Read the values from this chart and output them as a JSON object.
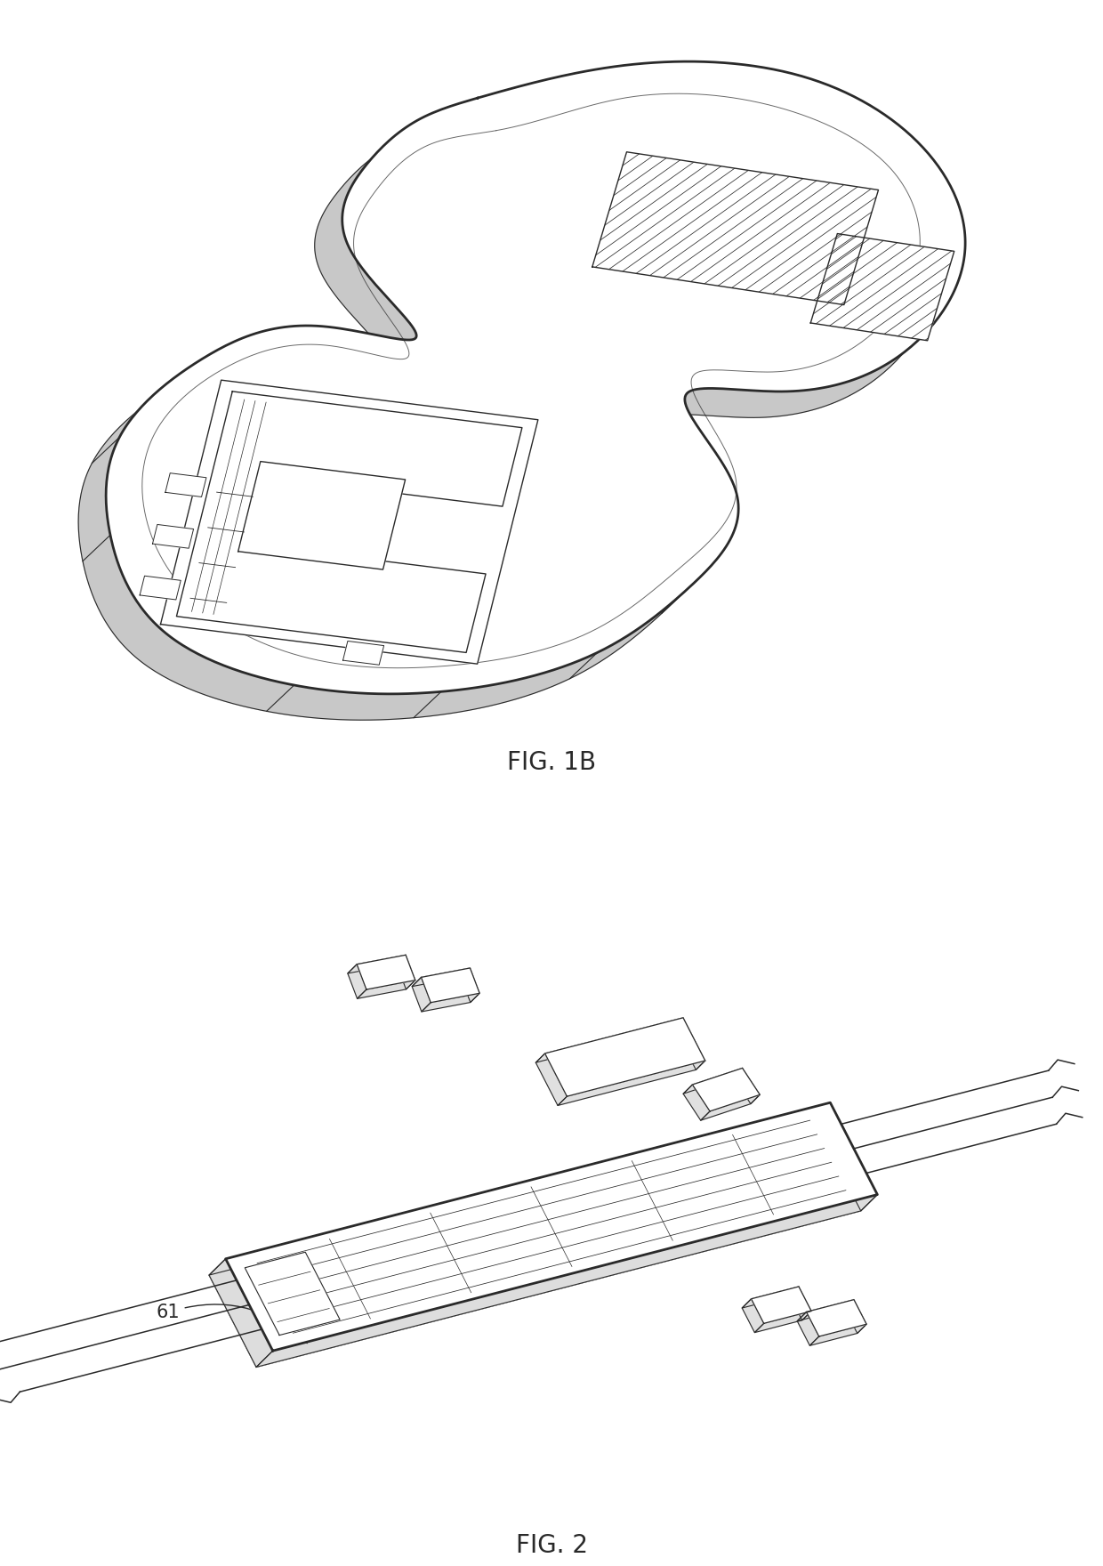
{
  "background_color": "#ffffff",
  "line_color": "#2a2a2a",
  "lw_outer": 2.0,
  "lw_inner": 1.0,
  "lw_thin": 0.6,
  "fig1b_label": "FIG. 1B",
  "fig2_label": "FIG. 2",
  "label_61": "61",
  "label_fontsize": 15,
  "fig_label_fontsize": 20
}
